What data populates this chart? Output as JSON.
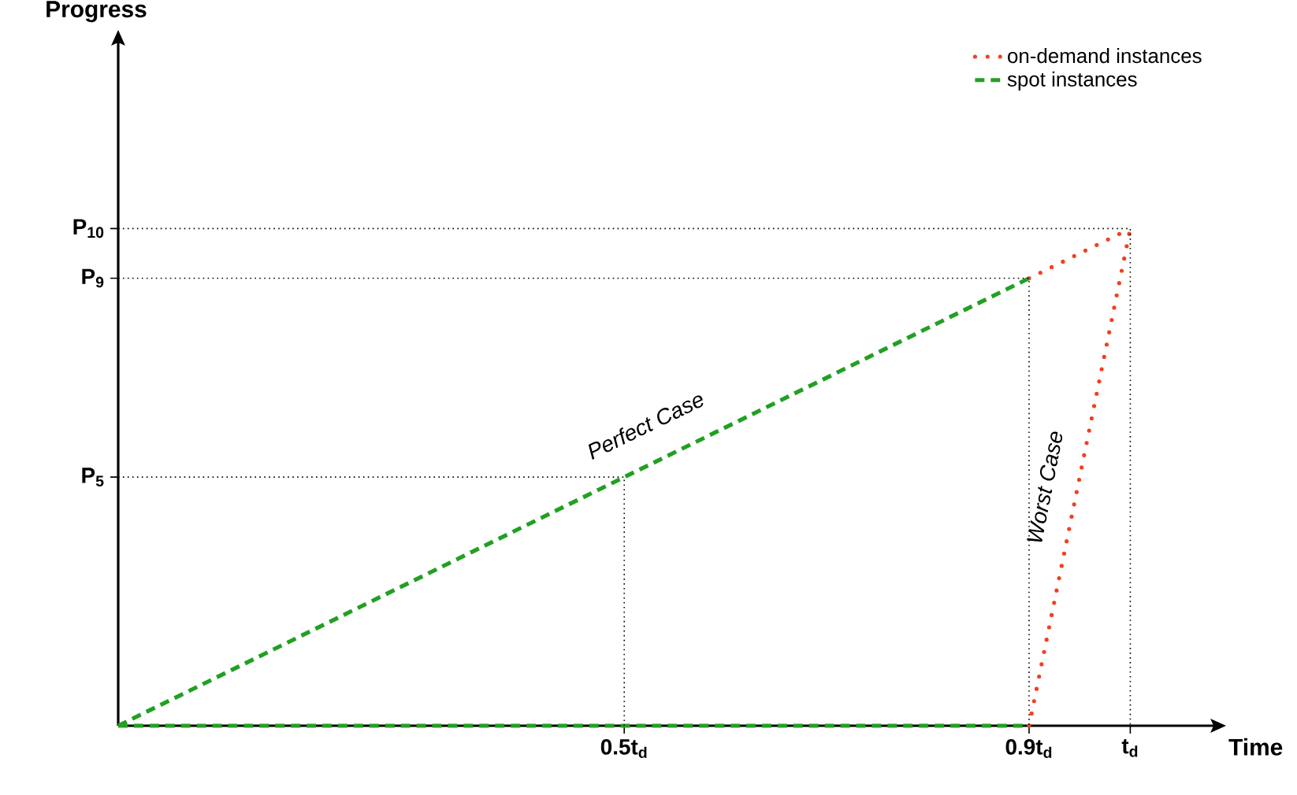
{
  "chart_data": {
    "type": "line",
    "xlabel": "Time",
    "ylabel": "Progress",
    "xlim": [
      0,
      1.09
    ],
    "ylim": [
      0,
      13.9
    ],
    "xticks": [
      {
        "value": 0.5,
        "label": "0.5t$_{d}$"
      },
      {
        "value": 0.9,
        "label": "0.9t$_{d}$"
      },
      {
        "value": 1,
        "label": "t$_{d}$"
      }
    ],
    "yticks": [
      {
        "value": 5,
        "label": "P$_{5}$"
      },
      {
        "value": 9,
        "label": "P$_{9}$"
      },
      {
        "value": 10,
        "label": "P$_{10}$"
      }
    ],
    "legend": "top right",
    "grid": false,
    "series": [
      {
        "name": "on-demand instances",
        "color": "#f2401f",
        "line_style": "dotted",
        "x": [
          0.9,
          1
        ],
        "values": [
          9,
          10
        ]
      },
      {
        "color": "#f2401f",
        "line_style": "dotted",
        "x": [
          0.9,
          1
        ],
        "values": [
          0,
          10
        ]
      },
      {
        "name": "spot instances",
        "color": "#22a022",
        "line_style": "dashed",
        "x": [
          0,
          0.9
        ],
        "values": [
          0,
          9
        ]
      },
      {
        "color": "#22a022",
        "line_style": "dashed",
        "x": [
          0,
          0.9
        ],
        "values": [
          0,
          0
        ]
      },
      {
        "color": "#000000",
        "line_style": "dotted",
        "x": [
          0,
          1,
          1
        ],
        "values": [
          10,
          10,
          0
        ]
      },
      {
        "color": "#000000",
        "line_style": "dotted",
        "x": [
          0,
          0.9,
          0.9
        ],
        "values": [
          9,
          9,
          0
        ]
      },
      {
        "color": "#000000",
        "line_style": "dotted",
        "x": [
          0,
          0.5,
          0.5
        ],
        "values": [
          5,
          5,
          0
        ]
      }
    ],
    "annotations": [
      "Perfect Case",
      "Worst Case"
    ]
  }
}
